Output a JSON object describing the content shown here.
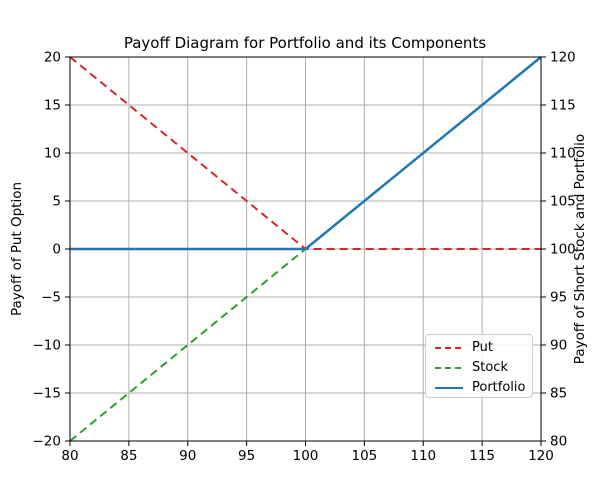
{
  "figure": {
    "background": "#ffffff",
    "spine_color": "#000000",
    "text_color": "#000000"
  },
  "chart_data": {
    "type": "line",
    "title": "Payoff Diagram for Portfolio and its Components",
    "xlabel": "",
    "ylabel_left": "Payoff of Put Option",
    "ylabel_right": "Payoff of Short Stock and Portfolio",
    "x_range": [
      80,
      120
    ],
    "y_left_range": [
      -20,
      20
    ],
    "y_right_range": [
      80,
      120
    ],
    "grid": true,
    "grid_color": "#b0b0b0",
    "x_ticks": {
      "values": [
        80,
        85,
        90,
        95,
        100,
        105,
        110,
        115,
        120
      ],
      "labels": [
        "80",
        "85",
        "90",
        "95",
        "100",
        "105",
        "110",
        "115",
        "120"
      ]
    },
    "y_left_ticks": {
      "values": [
        -20,
        -15,
        -10,
        -5,
        0,
        5,
        10,
        15,
        20
      ],
      "labels": [
        "−20",
        "−15",
        "−10",
        "−5",
        "0",
        "5",
        "10",
        "15",
        "20"
      ]
    },
    "y_right_ticks": {
      "values": [
        80,
        85,
        90,
        95,
        100,
        105,
        110,
        115,
        120
      ],
      "labels": [
        "80",
        "85",
        "90",
        "95",
        "100",
        "105",
        "110",
        "115",
        "120"
      ]
    },
    "legend_position": "lower right",
    "series": [
      {
        "name": "Put",
        "color": "#d62728",
        "linestyle": "dashed",
        "axis": "left",
        "points": [
          [
            80,
            20
          ],
          [
            100,
            0
          ],
          [
            120,
            0
          ]
        ]
      },
      {
        "name": "Stock",
        "color": "#2ca02c",
        "linestyle": "dashed",
        "axis": "right",
        "points": [
          [
            80,
            80
          ],
          [
            100,
            100
          ],
          [
            120,
            120
          ]
        ]
      },
      {
        "name": "Portfolio",
        "color": "#1f77b4",
        "linestyle": "solid",
        "axis": "right",
        "points": [
          [
            80,
            100
          ],
          [
            100,
            100
          ],
          [
            120,
            120
          ]
        ]
      }
    ]
  }
}
